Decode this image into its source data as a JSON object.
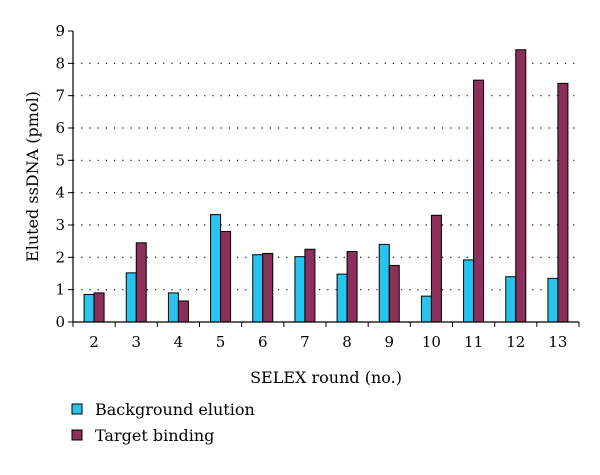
{
  "chart_data": {
    "type": "bar",
    "xlabel": "SELEX round (no.)",
    "ylabel": "Eluted ssDNA (pmol)",
    "ylim": [
      0,
      9
    ],
    "yticks": [
      "0",
      "1",
      "2",
      "3",
      "4",
      "5",
      "6",
      "7",
      "8",
      "9"
    ],
    "categories": [
      "2",
      "3",
      "4",
      "5",
      "6",
      "7",
      "8",
      "9",
      "10",
      "11",
      "12",
      "13"
    ],
    "series": [
      {
        "name": "Background elution",
        "color": "#29c4ee",
        "values": [
          0.85,
          1.52,
          0.9,
          3.32,
          2.08,
          2.02,
          1.48,
          2.4,
          0.8,
          1.92,
          1.4,
          1.35
        ]
      },
      {
        "name": "Target binding",
        "color": "#8c2f5a",
        "values": [
          0.9,
          2.45,
          0.65,
          2.8,
          2.12,
          2.25,
          2.18,
          1.75,
          3.3,
          7.48,
          8.42,
          7.38
        ]
      }
    ],
    "grid": "horizontal dotted",
    "legend_position": "bottom-left"
  }
}
